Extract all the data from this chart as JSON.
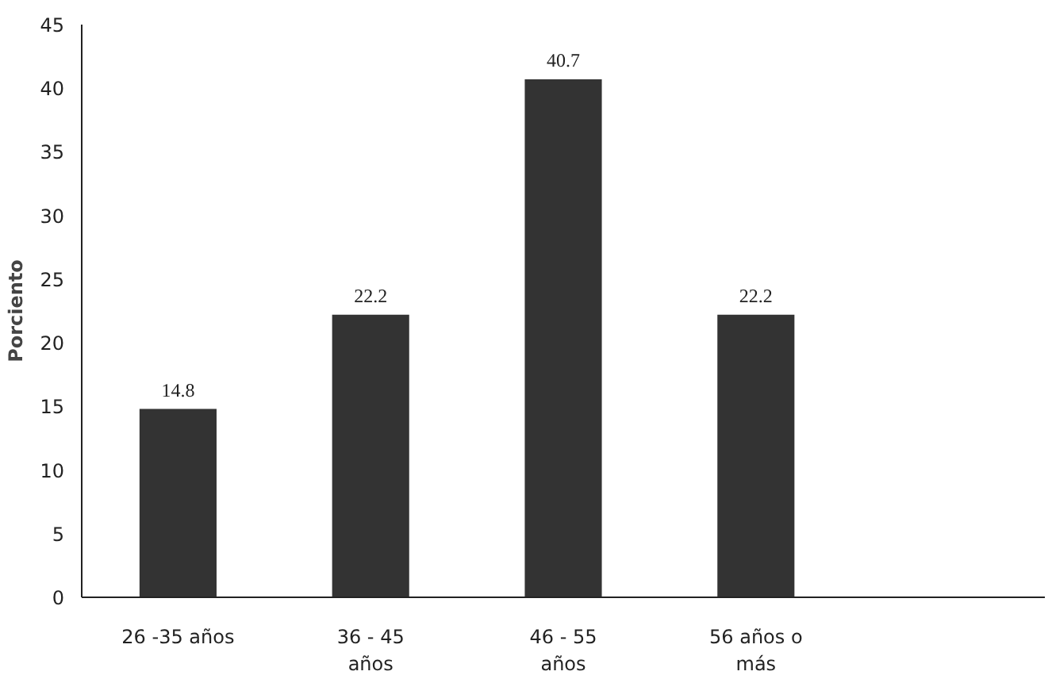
{
  "chart_data": {
    "type": "bar",
    "ylabel": "Porciento",
    "categories": [
      "26 -35 años",
      "36 - 45 años",
      "46 - 55 años",
      "56 años o más",
      null
    ],
    "values": [
      14.8,
      22.2,
      40.7,
      22.2,
      null
    ],
    "color": "#333333",
    "ylim": [
      0,
      45
    ],
    "yticks": [
      0,
      5,
      10,
      15,
      20,
      25,
      30,
      35,
      40,
      45
    ],
    "grid": false,
    "data_labels": true
  }
}
